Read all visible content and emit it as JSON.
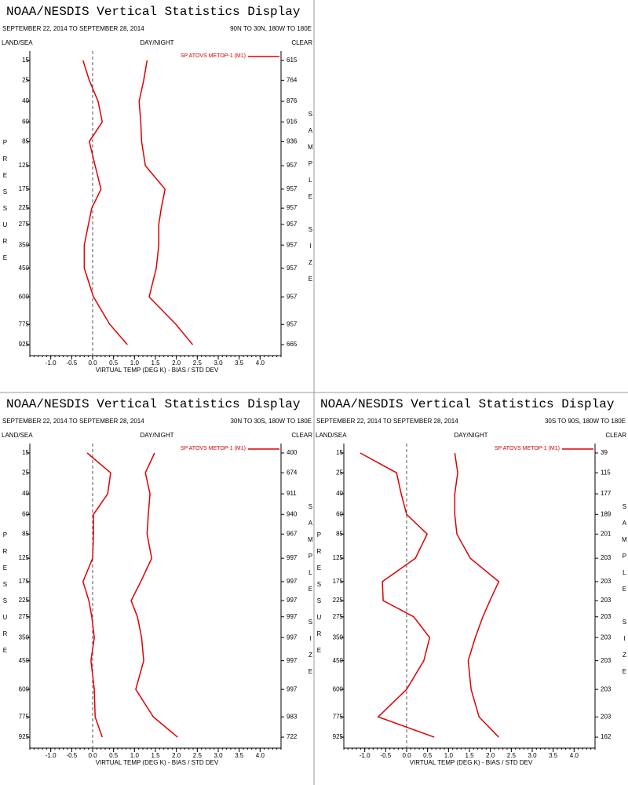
{
  "chart_data": [
    {
      "type": "line",
      "title": "NOAA/NESDIS Vertical Statistics Display",
      "subtitle": "SEPTEMBER 22, 2014 TO SEPTEMBER 28, 2014",
      "region": "90N TO 30N, 180W TO 180E",
      "left_header": "LAND/SEA",
      "center_header": "DAY/NIGHT",
      "right_header": "CLEAR",
      "y_label": "PRESSURE",
      "y2_label": "SAMPLE SIZE",
      "x_label": "VIRTUAL TEMP (DEG K) - BIAS / STD DEV",
      "legend": {
        "label": "SP ATOVS METOP-1 (M1)",
        "color": "#e00000"
      },
      "y": [
        15,
        25,
        40,
        60,
        85,
        125,
        175,
        225,
        275,
        350,
        450,
        600,
        775,
        925
      ],
      "sample_size": [
        615,
        764,
        876,
        916,
        936,
        957,
        957,
        957,
        957,
        957,
        957,
        957,
        957,
        665
      ],
      "series": [
        {
          "color": "#e00000",
          "values": [
            -0.23,
            -0.08,
            0.13,
            0.23,
            -0.08,
            0.06,
            0.2,
            -0.02,
            -0.1,
            -0.2,
            -0.2,
            0.02,
            0.41,
            0.83
          ]
        },
        {
          "color": "#e00000",
          "values": [
            1.3,
            1.22,
            1.11,
            1.15,
            1.17,
            1.26,
            1.73,
            1.64,
            1.58,
            1.58,
            1.52,
            1.35,
            1.99,
            2.39
          ]
        }
      ],
      "xlim": [
        -1.5,
        4.5
      ],
      "xticks": [
        {
          "value": -1.0,
          "label": "-1.0"
        },
        {
          "value": -0.5,
          "label": "-0.5"
        },
        {
          "value": 0.0,
          "label": "0.0"
        },
        {
          "value": 0.5,
          "label": "0.5"
        },
        {
          "value": 1.0,
          "label": "1.0"
        },
        {
          "value": 1.5,
          "label": "1.5"
        },
        {
          "value": 2.0,
          "label": "2.0"
        },
        {
          "value": 2.5,
          "label": "2.5"
        },
        {
          "value": 3.0,
          "label": "3.0"
        },
        {
          "value": 3.5,
          "label": "3.5"
        },
        {
          "value": 4.0,
          "label": "4.0"
        }
      ]
    },
    {
      "type": "line",
      "title": "NOAA/NESDIS Vertical Statistics Display",
      "subtitle": "SEPTEMBER 22, 2014 TO SEPTEMBER 28, 2014",
      "region": "30N TO 30S, 180W TO 180E",
      "left_header": "LAND/SEA",
      "center_header": "DAY/NIGHT",
      "right_header": "CLEAR",
      "y_label": "PRESSURE",
      "y2_label": "SAMPLE SIZE",
      "x_label": "VIRTUAL TEMP (DEG K) - BIAS / STD DEV",
      "legend": {
        "label": "SP ATOVS METOP-1 (M1)",
        "color": "#e00000"
      },
      "y": [
        15,
        25,
        40,
        60,
        85,
        125,
        175,
        225,
        275,
        350,
        450,
        600,
        775,
        925
      ],
      "sample_size": [
        400,
        674,
        911,
        940,
        967,
        997,
        997,
        997,
        997,
        997,
        997,
        997,
        983,
        722
      ],
      "series": [
        {
          "color": "#e00000",
          "values": [
            -0.13,
            0.43,
            0.36,
            0.02,
            0.02,
            0.0,
            -0.23,
            -0.09,
            -0.02,
            0.04,
            -0.04,
            0.04,
            0.06,
            0.23
          ]
        },
        {
          "color": "#e00000",
          "values": [
            1.48,
            1.26,
            1.37,
            1.33,
            1.3,
            1.41,
            1.15,
            0.92,
            1.07,
            1.17,
            1.22,
            1.03,
            1.45,
            2.03
          ]
        }
      ],
      "xlim": [
        -1.5,
        4.5
      ],
      "xticks": [
        {
          "value": -1.0,
          "label": "-1.0"
        },
        {
          "value": -0.5,
          "label": "-0.5"
        },
        {
          "value": 0.0,
          "label": "0.0"
        },
        {
          "value": 0.5,
          "label": "0.5"
        },
        {
          "value": 1.0,
          "label": "1.0"
        },
        {
          "value": 1.5,
          "label": "1.5"
        },
        {
          "value": 2.0,
          "label": "2.0"
        },
        {
          "value": 2.5,
          "label": "2.5"
        },
        {
          "value": 3.0,
          "label": "3.0"
        },
        {
          "value": 3.5,
          "label": "3.5"
        },
        {
          "value": 4.0,
          "label": "4.0"
        }
      ]
    },
    {
      "type": "line",
      "title": "NOAA/NESDIS Vertical Statistics Display",
      "subtitle": "SEPTEMBER 22, 2014 TO SEPTEMBER 28, 2014",
      "region": "30S TO 90S, 180W TO 180E",
      "left_header": "LAND/SEA",
      "center_header": "DAY/NIGHT",
      "right_header": "CLEAR",
      "y_label": "PRESSURE",
      "y2_label": "SAMPLE SIZE",
      "x_label": "VIRTUAL TEMP (DEG K) - BIAS / STD DEV",
      "legend": {
        "label": "SP ATOVS METOP-1 (M1)",
        "color": "#e00000"
      },
      "y": [
        15,
        25,
        40,
        60,
        85,
        125,
        175,
        225,
        275,
        350,
        450,
        600,
        775,
        925
      ],
      "sample_size": [
        39,
        115,
        177,
        189,
        201,
        203,
        203,
        203,
        203,
        203,
        203,
        203,
        203,
        162
      ],
      "series": [
        {
          "color": "#e00000",
          "values": [
            -1.11,
            -0.24,
            -0.13,
            0.0,
            0.49,
            0.21,
            -0.58,
            -0.56,
            0.17,
            0.55,
            0.41,
            0.0,
            -0.68,
            0.66
          ]
        },
        {
          "color": "#e00000",
          "values": [
            1.15,
            1.22,
            1.15,
            1.15,
            1.2,
            1.52,
            2.2,
            1.99,
            1.82,
            1.64,
            1.47,
            1.54,
            1.73,
            2.2
          ]
        }
      ],
      "xlim": [
        -1.5,
        4.5
      ],
      "xticks": [
        {
          "value": -1.0,
          "label": "-1.0"
        },
        {
          "value": -0.5,
          "label": "-0.5"
        },
        {
          "value": 0.0,
          "label": "0.0"
        },
        {
          "value": 0.5,
          "label": "0.5"
        },
        {
          "value": 1.0,
          "label": "1.0"
        },
        {
          "value": 1.5,
          "label": "1.5"
        },
        {
          "value": 2.0,
          "label": "2.0"
        },
        {
          "value": 2.5,
          "label": "2.5"
        },
        {
          "value": 3.0,
          "label": "3.0"
        },
        {
          "value": 3.5,
          "label": "3.5"
        },
        {
          "value": 4.0,
          "label": "4.0"
        }
      ]
    }
  ]
}
